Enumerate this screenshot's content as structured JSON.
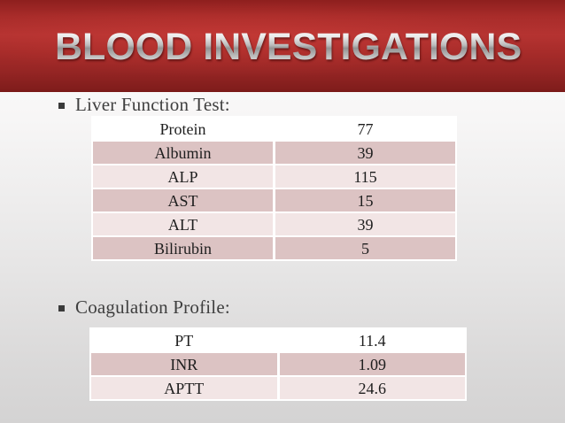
{
  "slide": {
    "title": "BLOOD INVESTIGATIONS"
  },
  "colors": {
    "banner_red": "#a92c2a",
    "row_dark_pink": "#dcc3c3",
    "row_light_pink": "#f2e5e5",
    "heading_text": "#3f3f3f",
    "title_silver": "#c8c8c8"
  },
  "sections": [
    {
      "heading": "Liver Function Test:",
      "table": {
        "rows": [
          {
            "label": "Protein",
            "value": "77"
          },
          {
            "label": "Albumin",
            "value": "39"
          },
          {
            "label": "ALP",
            "value": "115"
          },
          {
            "label": "AST",
            "value": "15"
          },
          {
            "label": "ALT",
            "value": "39"
          },
          {
            "label": "Bilirubin",
            "value": "5"
          }
        ]
      }
    },
    {
      "heading": "Coagulation Profile:",
      "table": {
        "rows": [
          {
            "label": "PT",
            "value": "11.4"
          },
          {
            "label": "INR",
            "value": "1.09"
          },
          {
            "label": "APTT",
            "value": "24.6"
          }
        ]
      }
    }
  ]
}
